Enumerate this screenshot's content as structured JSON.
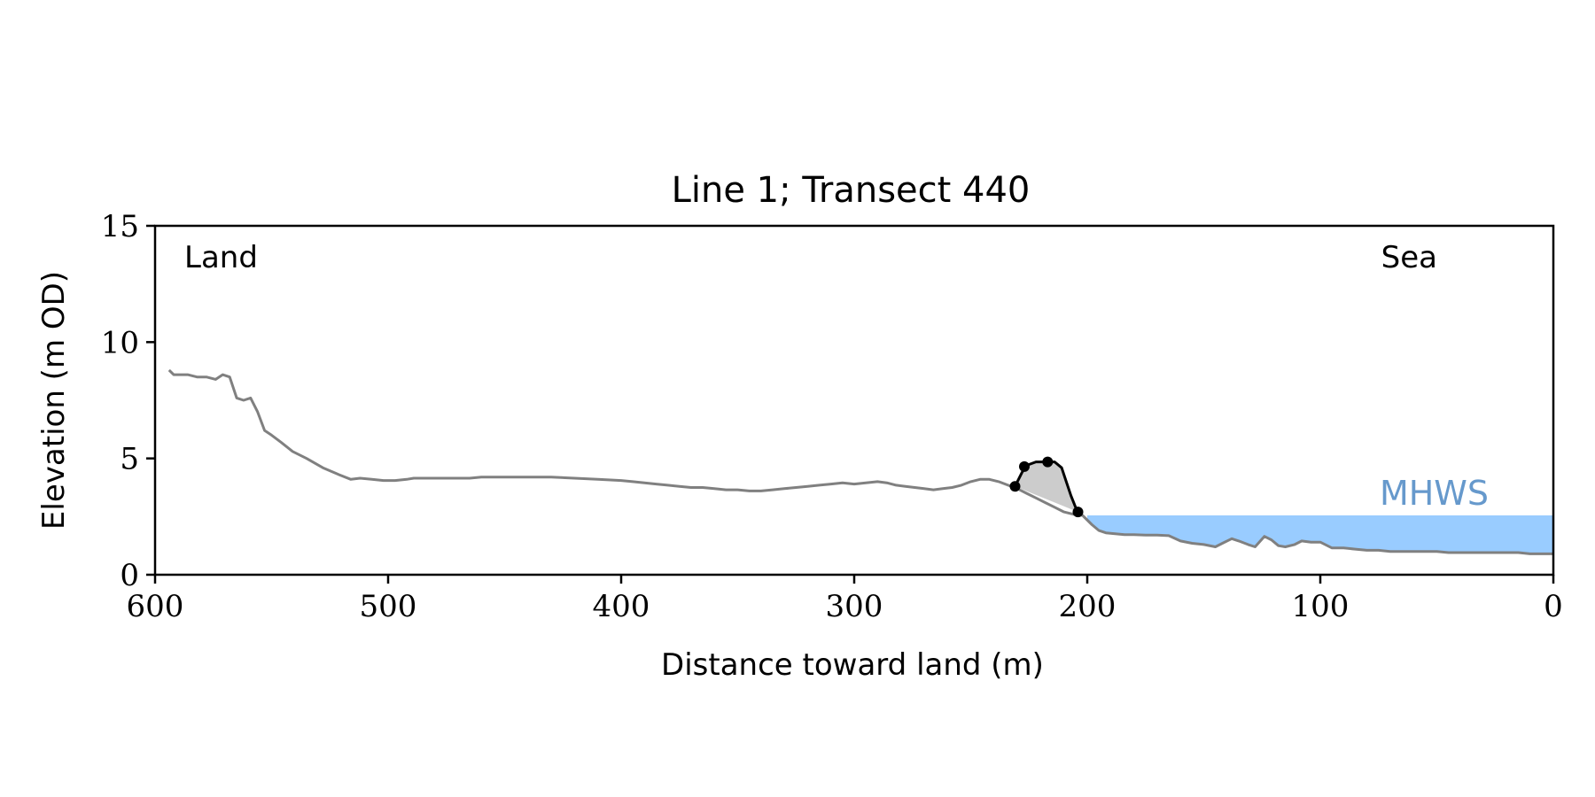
{
  "chart_data": {
    "type": "line",
    "title": "Line 1; Transect 440",
    "xlabel": "Distance toward land (m)",
    "ylabel": "Elevation (m OD)",
    "xlim": [
      600,
      0
    ],
    "ylim": [
      0,
      15
    ],
    "x_ticks": [
      600,
      500,
      400,
      300,
      200,
      100,
      0
    ],
    "y_ticks": [
      0,
      5,
      10,
      15
    ],
    "grid": false,
    "colors": {
      "profile": "#808080",
      "dune": "#000000",
      "dune_fill": "#cccccc",
      "sea_fill": "#99ccff",
      "mhws_text": "#6699cc"
    },
    "annotations": {
      "land": "Land",
      "sea": "Sea",
      "mhws": "MHWS"
    },
    "mhws_level": 2.55,
    "mhws_x_start": 200,
    "profile": {
      "x": [
        594,
        592,
        589,
        586,
        582,
        578,
        574,
        571,
        568,
        565,
        562,
        559,
        556,
        553,
        550,
        546,
        541,
        535,
        528,
        521,
        516,
        512,
        507,
        502,
        497,
        492,
        489,
        485,
        480,
        475,
        470,
        465,
        460,
        455,
        450,
        440,
        430,
        420,
        410,
        400,
        395,
        390,
        385,
        380,
        375,
        370,
        365,
        360,
        355,
        350,
        345,
        340,
        335,
        330,
        325,
        320,
        315,
        310,
        305,
        300,
        295,
        290,
        286,
        282,
        278,
        274,
        270,
        266,
        262,
        258,
        254,
        250,
        246,
        242,
        238,
        234,
        230,
        226,
        222,
        218,
        214,
        210,
        206,
        202,
        198,
        195,
        192,
        190,
        187,
        184,
        180,
        175,
        170,
        165,
        160,
        155,
        150,
        145,
        142,
        138,
        135,
        131,
        128,
        124,
        121,
        118,
        115,
        111,
        108,
        104,
        100,
        95,
        90,
        85,
        80,
        75,
        70,
        65,
        60,
        55,
        50,
        45,
        40,
        35,
        30,
        25,
        20,
        15,
        10,
        5,
        0
      ],
      "y": [
        8.8,
        8.6,
        8.6,
        8.6,
        8.5,
        8.5,
        8.4,
        8.6,
        8.5,
        7.6,
        7.5,
        7.6,
        7.0,
        6.2,
        6.0,
        5.7,
        5.3,
        5.0,
        4.6,
        4.3,
        4.1,
        4.15,
        4.1,
        4.05,
        4.05,
        4.1,
        4.15,
        4.15,
        4.15,
        4.15,
        4.15,
        4.15,
        4.2,
        4.2,
        4.2,
        4.2,
        4.2,
        4.15,
        4.1,
        4.05,
        4.0,
        3.95,
        3.9,
        3.85,
        3.8,
        3.75,
        3.75,
        3.7,
        3.65,
        3.65,
        3.6,
        3.6,
        3.65,
        3.7,
        3.75,
        3.8,
        3.85,
        3.9,
        3.95,
        3.9,
        3.95,
        4.0,
        3.95,
        3.85,
        3.8,
        3.75,
        3.7,
        3.65,
        3.7,
        3.75,
        3.85,
        4.0,
        4.1,
        4.1,
        4.0,
        3.85,
        3.7,
        3.5,
        3.3,
        3.1,
        2.9,
        2.7,
        2.6,
        2.55,
        2.15,
        1.9,
        1.8,
        1.78,
        1.75,
        1.72,
        1.72,
        1.7,
        1.7,
        1.68,
        1.45,
        1.35,
        1.3,
        1.2,
        1.35,
        1.55,
        1.45,
        1.3,
        1.2,
        1.65,
        1.5,
        1.25,
        1.2,
        1.3,
        1.45,
        1.4,
        1.4,
        1.15,
        1.15,
        1.1,
        1.05,
        1.05,
        1.0,
        1.0,
        1.0,
        1.0,
        1.0,
        0.95,
        0.95,
        0.95,
        0.95,
        0.95,
        0.95,
        0.95,
        0.9,
        0.9,
        0.9
      ]
    },
    "dune": {
      "x": [
        231,
        228,
        226,
        222,
        218,
        214,
        211,
        209,
        207,
        205,
        204
      ],
      "y": [
        3.8,
        4.4,
        4.7,
        4.85,
        4.85,
        4.85,
        4.6,
        4.0,
        3.4,
        2.9,
        2.7
      ]
    },
    "dune_markers": {
      "x": [
        231,
        227,
        217,
        204
      ],
      "y": [
        3.8,
        4.65,
        4.85,
        2.7
      ]
    }
  }
}
